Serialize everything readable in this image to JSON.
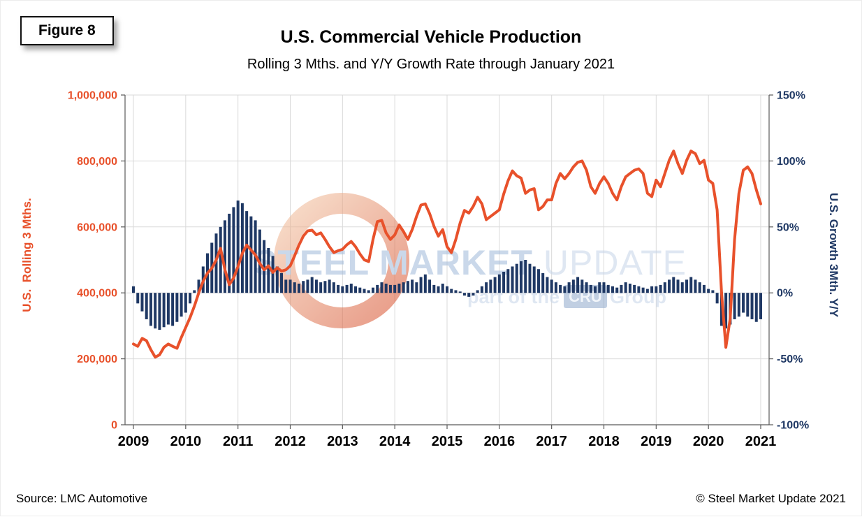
{
  "figure_label": "Figure 8",
  "header": {
    "title": "U.S. Commercial Vehicle Production",
    "subtitle": "Rolling 3 Mths. and Y/Y Growth Rate through January 2021"
  },
  "footer": {
    "source": "Source: LMC Automotive",
    "copyright": "© Steel Market Update 2021"
  },
  "watermark": {
    "line1_strong": "STEEL MARKET",
    "line1_light": " UPDATE",
    "line2_prefix": "part of the ",
    "line2_badge": "CRU",
    "line2_suffix": " Group"
  },
  "colors": {
    "line": "#E8512B",
    "bars": "#1F3864",
    "left_axis": "#E8512B",
    "right_axis": "#1F3864",
    "grid": "#D9D9D9",
    "axis_line": "#595959",
    "x_labels": "#000000",
    "watermark_text": "#9FB9D9",
    "watermark_text_light": "#C6D5E8",
    "watermark_badge": "#8FA9CC",
    "watermark_ring_light": "#F2C3A0",
    "watermark_ring_dark": "#D64A26"
  },
  "chart_data": {
    "type": "bar",
    "description": "Combo chart: navy bars = Y/Y growth % (right axis), orange line = rolling 3-month production (left axis). Monthly data Jan 2009 through Jan 2021.",
    "frequency": "monthly",
    "x_start": "2009-01",
    "x_end": "2021-01",
    "x_year_ticks": [
      "2009",
      "2010",
      "2011",
      "2012",
      "2013",
      "2014",
      "2015",
      "2016",
      "2017",
      "2018",
      "2019",
      "2020",
      "2021"
    ],
    "left_axis": {
      "label": "U.S.  Rolling 3 Mths.",
      "min": 0,
      "max": 1000000,
      "tick_values": [
        0,
        200000,
        400000,
        600000,
        800000,
        1000000
      ],
      "tick_labels": [
        "0",
        "200,000",
        "400,000",
        "600,000",
        "800,000",
        "1,000,000"
      ]
    },
    "right_axis": {
      "label": "U.S. Growth 3Mth. Y/Y",
      "min": -100,
      "max": 150,
      "tick_values": [
        -100,
        -50,
        0,
        50,
        100,
        150
      ],
      "tick_labels": [
        "-100%",
        "-50%",
        "0%",
        "50%",
        "100%",
        "150%"
      ]
    },
    "grid": true,
    "legend": "none",
    "series": [
      {
        "name": "U.S. Rolling 3 Mths. Production (units)",
        "type": "line",
        "axis": "left",
        "values": [
          245000,
          238000,
          262000,
          255000,
          228000,
          205000,
          212000,
          235000,
          245000,
          238000,
          232000,
          265000,
          295000,
          325000,
          360000,
          400000,
          435000,
          460000,
          475000,
          500000,
          535000,
          470000,
          425000,
          445000,
          480000,
          520000,
          545000,
          530000,
          515000,
          490000,
          470000,
          482000,
          462000,
          476000,
          466000,
          470000,
          482000,
          512000,
          545000,
          572000,
          588000,
          590000,
          576000,
          582000,
          562000,
          540000,
          522000,
          528000,
          532000,
          546000,
          556000,
          540000,
          518000,
          500000,
          495000,
          562000,
          616000,
          620000,
          582000,
          562000,
          576000,
          606000,
          586000,
          562000,
          592000,
          632000,
          666000,
          670000,
          640000,
          602000,
          572000,
          592000,
          540000,
          522000,
          562000,
          612000,
          650000,
          642000,
          662000,
          690000,
          670000,
          622000,
          632000,
          642000,
          652000,
          700000,
          740000,
          770000,
          755000,
          748000,
          702000,
          712000,
          716000,
          652000,
          662000,
          682000,
          682000,
          732000,
          762000,
          746000,
          762000,
          782000,
          796000,
          800000,
          772000,
          722000,
          702000,
          732000,
          752000,
          732000,
          702000,
          682000,
          722000,
          752000,
          762000,
          772000,
          776000,
          762000,
          702000,
          692000,
          742000,
          722000,
          762000,
          802000,
          830000,
          792000,
          762000,
          802000,
          830000,
          822000,
          792000,
          802000,
          742000,
          732000,
          652000,
          402000,
          235000,
          322000,
          562000,
          702000,
          772000,
          782000,
          762000,
          712000,
          670000
        ]
      },
      {
        "name": "U.S. Growth 3Mth. Y/Y (%)",
        "type": "bar",
        "axis": "right",
        "values": [
          5,
          -8,
          -14,
          -20,
          -25,
          -27,
          -28,
          -26,
          -24,
          -25,
          -22,
          -18,
          -15,
          -8,
          2,
          10,
          20,
          30,
          38,
          45,
          50,
          55,
          60,
          65,
          70,
          68,
          62,
          58,
          55,
          48,
          40,
          34,
          28,
          20,
          15,
          10,
          10,
          8,
          7,
          9,
          10,
          12,
          10,
          8,
          9,
          10,
          8,
          6,
          5,
          6,
          7,
          5,
          4,
          3,
          2,
          4,
          6,
          8,
          7,
          6,
          6,
          7,
          8,
          9,
          10,
          8,
          12,
          14,
          10,
          6,
          5,
          7,
          5,
          3,
          2,
          1,
          -2,
          -3,
          -2,
          2,
          5,
          8,
          10,
          12,
          14,
          16,
          18,
          20,
          22,
          24,
          25,
          22,
          20,
          18,
          15,
          12,
          10,
          8,
          6,
          5,
          8,
          10,
          12,
          10,
          8,
          6,
          5,
          8,
          8,
          6,
          5,
          4,
          6,
          8,
          7,
          6,
          5,
          4,
          3,
          5,
          5,
          6,
          8,
          10,
          12,
          10,
          8,
          10,
          12,
          10,
          8,
          6,
          3,
          2,
          -8,
          -25,
          -27,
          -24,
          -20,
          -18,
          -15,
          -18,
          -20,
          -22,
          -20
        ]
      }
    ]
  }
}
